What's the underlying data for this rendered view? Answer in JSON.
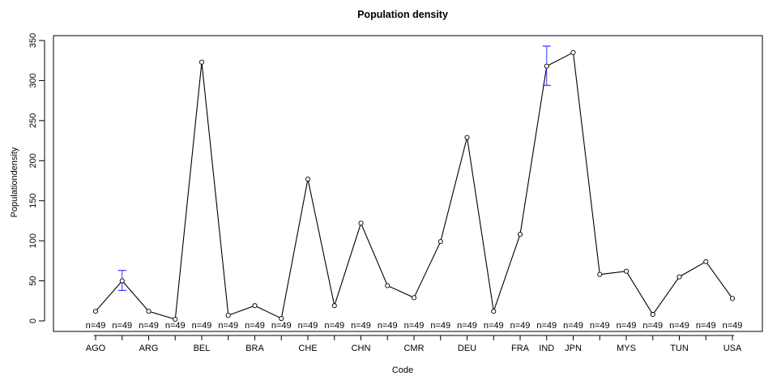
{
  "chart_data": {
    "type": "line",
    "title": "Population density",
    "xlabel": "Code",
    "ylabel": "Populationdensity",
    "ylim": [
      -8,
      355
    ],
    "yticks": [
      0,
      50,
      100,
      150,
      200,
      250,
      300,
      350
    ],
    "grid": false,
    "x_tick_labels": [
      "AGO",
      "ARG",
      "BEL",
      "BRA",
      "CHE",
      "CHN",
      "CMR",
      "DEU",
      "FRA",
      "IND",
      "JPN",
      "MYS",
      "TUN",
      "USA"
    ],
    "x_tick_positions": [
      1,
      3,
      5,
      7,
      9,
      11,
      13,
      15,
      17,
      18,
      19,
      21,
      23,
      25
    ],
    "x": [
      1,
      2,
      3,
      4,
      5,
      6,
      7,
      8,
      9,
      10,
      11,
      12,
      13,
      14,
      15,
      16,
      17,
      18,
      19,
      20,
      21,
      22,
      23,
      24,
      25
    ],
    "values": [
      12,
      50,
      12,
      2,
      323,
      7,
      19,
      3,
      177,
      19,
      122,
      44,
      29,
      99,
      229,
      12,
      108,
      318,
      335,
      58,
      62,
      8,
      55,
      74,
      28
    ],
    "error_bars": [
      {
        "x": 2,
        "low": 38,
        "high": 63
      },
      {
        "x": 18,
        "low": 294,
        "high": 343
      }
    ],
    "n_labels": [
      "n=49",
      "n=49",
      "n=49",
      "n=49",
      "n=49",
      "n=49",
      "n=49",
      "n=49",
      "n=49",
      "n=49",
      "n=49",
      "n=49",
      "n=49",
      "n=49",
      "n=49",
      "n=49",
      "n=49",
      "n=49",
      "n=49",
      "n=49",
      "n=49",
      "n=49",
      "n=49",
      "n=49",
      "n=49"
    ],
    "colors": {
      "line": "#000000",
      "error_bar": "#3333ff",
      "marker": "#000000"
    }
  }
}
